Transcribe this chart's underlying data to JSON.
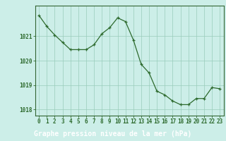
{
  "x": [
    0,
    1,
    2,
    3,
    4,
    5,
    6,
    7,
    8,
    9,
    10,
    11,
    12,
    13,
    14,
    15,
    16,
    17,
    18,
    19,
    20,
    21,
    22,
    23
  ],
  "y": [
    1021.85,
    1021.4,
    1021.05,
    1020.75,
    1020.45,
    1020.45,
    1020.45,
    1020.65,
    1021.1,
    1021.35,
    1021.75,
    1021.6,
    1020.85,
    1019.85,
    1019.5,
    1018.75,
    1018.6,
    1018.35,
    1018.2,
    1018.2,
    1018.45,
    1018.45,
    1018.9,
    1018.85
  ],
  "ylim_min": 1017.75,
  "ylim_max": 1022.25,
  "yticks": [
    1018,
    1019,
    1020,
    1021
  ],
  "xtick_labels": [
    "0",
    "1",
    "2",
    "3",
    "4",
    "5",
    "6",
    "7",
    "8",
    "9",
    "10",
    "11",
    "12",
    "13",
    "14",
    "15",
    "16",
    "17",
    "18",
    "19",
    "20",
    "21",
    "22",
    "23"
  ],
  "line_color": "#2d6a2d",
  "bg_color": "#cceee8",
  "grid_color": "#99ccbb",
  "bottom_bar_color": "#336633",
  "xlabel": "Graphe pression niveau de la mer (hPa)",
  "tick_fontsize": 5.5,
  "label_fontsize": 7.0,
  "spine_color": "#336633"
}
